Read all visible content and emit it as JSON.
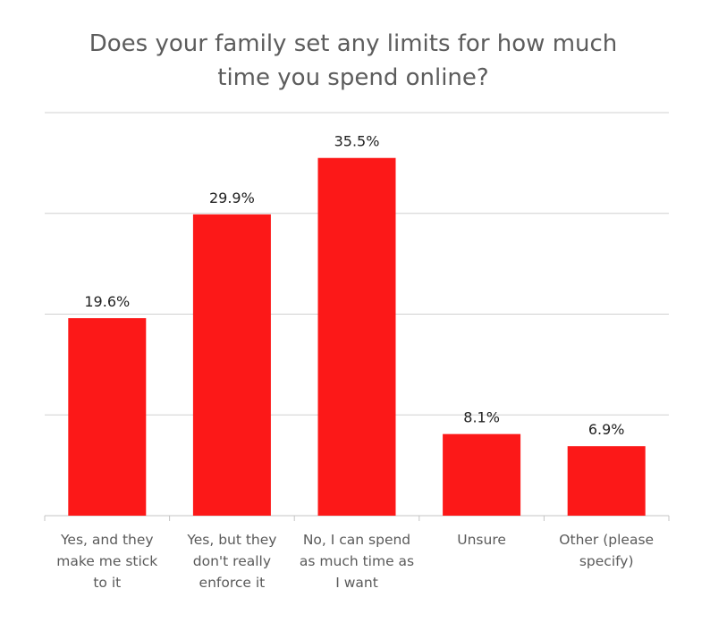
{
  "chart_data": {
    "type": "bar",
    "title": "Does your family set any limits for how much time you spend online?",
    "categories": [
      "Yes, and they make me stick to it",
      "Yes, but they don't really enforce it",
      "No, I can spend as much time as I want",
      "Unsure",
      "Other (please specify)"
    ],
    "values": [
      19.6,
      29.9,
      35.5,
      8.1,
      6.9
    ],
    "value_labels": [
      "19.6%",
      "29.9%",
      "35.5%",
      "8.1%",
      "6.9%"
    ],
    "xlabel": "",
    "ylabel": "",
    "ylim": [
      0,
      40
    ],
    "grid": true,
    "legend": "none",
    "bar_color": "#fc1818"
  }
}
